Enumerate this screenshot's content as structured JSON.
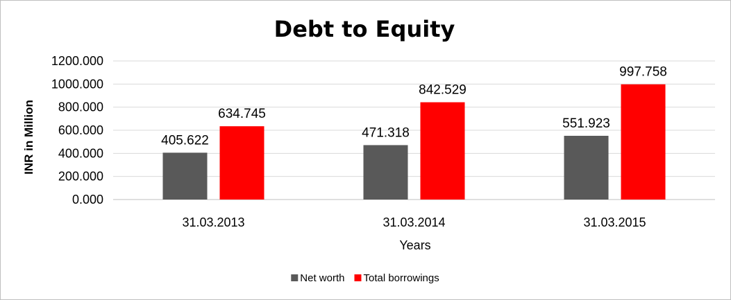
{
  "chart_data": {
    "type": "bar",
    "title": "Debt to Equity",
    "xlabel": "Years",
    "ylabel": "INR in Million",
    "categories": [
      "31.03.2013",
      "31.03.2014",
      "31.03.2015"
    ],
    "series": [
      {
        "name": "Net worth",
        "color": "#595959",
        "values": [
          405.622,
          471.318,
          551.923
        ],
        "labels": [
          "405.622",
          "471.318",
          "551.923"
        ]
      },
      {
        "name": "Total borrowings",
        "color": "#ff0000",
        "values": [
          634.745,
          842.529,
          997.758
        ],
        "labels": [
          "634.745",
          "842.529",
          "997.758"
        ]
      }
    ],
    "ylim": [
      0,
      1200
    ],
    "yticks": [
      "0.000",
      "200.000",
      "400.000",
      "600.000",
      "800.000",
      "1000.000",
      "1200.000"
    ],
    "grid": true,
    "legend_position": "bottom"
  }
}
